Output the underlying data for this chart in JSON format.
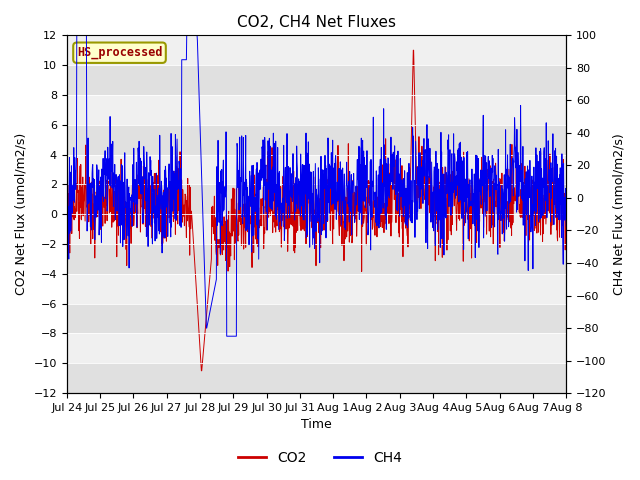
{
  "title": "CO2, CH4 Net Fluxes",
  "ylabel_left": "CO2 Net Flux (umol/m2/s)",
  "ylabel_right": "CH4 Net Flux (nmol/m2/s)",
  "xlabel": "Time",
  "ylim_left": [
    -12,
    12
  ],
  "ylim_right": [
    -120,
    100
  ],
  "yticks_left": [
    -12,
    -10,
    -8,
    -6,
    -4,
    -2,
    0,
    2,
    4,
    6,
    8,
    10,
    12
  ],
  "yticks_right": [
    -120,
    -100,
    -80,
    -60,
    -40,
    -20,
    0,
    20,
    40,
    60,
    80,
    100
  ],
  "xtick_labels": [
    "Jul 24",
    "Jul 25",
    "Jul 26",
    "Jul 27",
    "Jul 28",
    "Jul 29",
    "Jul 30",
    "Jul 31",
    "Aug 1",
    "Aug 2",
    "Aug 3",
    "Aug 4",
    "Aug 5",
    "Aug 6",
    "Aug 7",
    "Aug 8"
  ],
  "co2_color": "#CC0000",
  "ch4_color": "#0000EE",
  "legend_label": "HS_processed",
  "legend_bg": "#FFFFCC",
  "legend_border": "#999900",
  "bg_color": "#FFFFFF",
  "band_color_dark": "#E0E0E0",
  "band_color_light": "#F0F0F0",
  "n_points": 1500,
  "title_fontsize": 11,
  "axis_fontsize": 8,
  "label_fontsize": 9
}
